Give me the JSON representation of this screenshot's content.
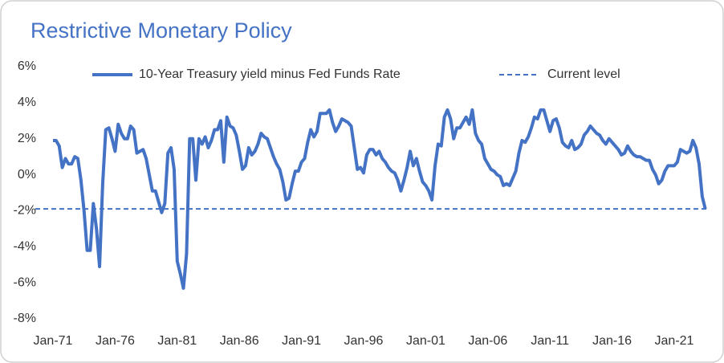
{
  "chart_data": {
    "type": "line",
    "title": "Restrictive Monetary Policy",
    "legend": "top",
    "categories": [
      "Jan-71",
      null,
      null,
      null,
      null,
      null,
      null,
      null,
      null,
      null,
      null,
      null,
      null,
      null,
      null,
      null,
      null,
      null,
      null,
      null,
      "Jan-76",
      null,
      null,
      null,
      null,
      null,
      null,
      null,
      null,
      null,
      null,
      null,
      null,
      null,
      null,
      null,
      null,
      null,
      null,
      null,
      "Jan-81",
      null,
      null,
      null,
      null,
      null,
      null,
      null,
      null,
      null,
      null,
      null,
      null,
      null,
      null,
      null,
      null,
      null,
      null,
      null,
      "Jan-86",
      null,
      null,
      null,
      null,
      null,
      null,
      null,
      null,
      null,
      null,
      null,
      null,
      null,
      null,
      null,
      null,
      null,
      null,
      null,
      "Jan-91",
      null,
      null,
      null,
      null,
      null,
      null,
      null,
      null,
      null,
      null,
      null,
      null,
      null,
      null,
      null,
      null,
      null,
      null,
      null,
      "Jan-96",
      null,
      null,
      null,
      null,
      null,
      null,
      null,
      null,
      null,
      null,
      null,
      null,
      null,
      null,
      null,
      null,
      null,
      null,
      null,
      "Jan-01",
      null,
      null,
      null,
      null,
      null,
      null,
      null,
      null,
      null,
      null,
      null,
      null,
      null,
      null,
      null,
      null,
      null,
      null,
      null,
      "Jan-06",
      null,
      null,
      null,
      null,
      null,
      null,
      null,
      null,
      null,
      null,
      null,
      null,
      null,
      null,
      null,
      null,
      null,
      null,
      null,
      "Jan-11",
      null,
      null,
      null,
      null,
      null,
      null,
      null,
      null,
      null,
      null,
      null,
      null,
      null,
      null,
      null,
      null,
      null,
      null,
      null,
      "Jan-16",
      null,
      null,
      null,
      null,
      null,
      null,
      null,
      null,
      null,
      null,
      null,
      null,
      null,
      null,
      null,
      null,
      null,
      null,
      null,
      "Jan-21",
      null,
      null,
      null,
      null,
      null,
      null,
      null,
      null,
      null,
      null
    ],
    "series": [
      {
        "name": "10-Year Treasury yield minus Fed Funds Rate",
        "color": "#4472c4",
        "values": [
          1.9,
          1.9,
          1.6,
          0.4,
          0.9,
          0.6,
          0.6,
          1.0,
          0.9,
          -0.3,
          -2.0,
          -4.2,
          -4.2,
          -1.6,
          -3.0,
          -5.1,
          -0.5,
          2.5,
          2.6,
          2.0,
          1.3,
          2.8,
          2.3,
          2.0,
          2.0,
          2.7,
          2.5,
          1.2,
          1.3,
          1.4,
          0.9,
          0.0,
          -0.9,
          -0.9,
          -1.5,
          -2.1,
          -1.6,
          1.2,
          1.5,
          0.3,
          -4.8,
          -5.5,
          -6.3,
          -4.4,
          2.0,
          2.0,
          -0.3,
          2.0,
          1.7,
          2.1,
          1.5,
          1.9,
          2.5,
          2.5,
          3.0,
          0.7,
          3.2,
          2.7,
          2.6,
          2.2,
          1.3,
          0.3,
          0.5,
          1.5,
          1.1,
          1.3,
          1.7,
          2.3,
          2.1,
          2.0,
          1.5,
          1.0,
          0.6,
          0.3,
          -0.4,
          -1.4,
          -1.3,
          -0.5,
          0.2,
          0.2,
          0.7,
          0.9,
          1.8,
          2.5,
          2.1,
          2.4,
          3.4,
          3.4,
          3.4,
          3.6,
          2.9,
          2.4,
          2.7,
          3.1,
          3.0,
          2.9,
          2.7,
          1.5,
          0.3,
          0.4,
          0.1,
          1.1,
          1.4,
          1.4,
          1.1,
          1.3,
          0.9,
          0.7,
          0.4,
          0.2,
          0.1,
          -0.3,
          -0.9,
          -0.3,
          0.4,
          1.3,
          0.5,
          0.9,
          0.2,
          -0.4,
          -0.6,
          -0.9,
          -1.4,
          0.5,
          1.7,
          1.6,
          3.2,
          3.6,
          3.1,
          2.0,
          2.6,
          2.6,
          2.9,
          3.2,
          2.8,
          3.6,
          2.3,
          1.9,
          1.7,
          0.9,
          0.6,
          0.3,
          0.2,
          0.0,
          -0.1,
          -0.6,
          -0.5,
          -0.6,
          -0.2,
          0.2,
          1.2,
          1.9,
          1.8,
          2.1,
          2.6,
          3.2,
          3.1,
          3.6,
          3.6,
          3.0,
          2.4,
          3.0,
          3.1,
          2.6,
          1.8,
          1.6,
          1.5,
          1.9,
          1.4,
          1.5,
          1.7,
          2.2,
          2.4,
          2.7,
          2.5,
          2.3,
          2.2,
          1.9,
          1.7,
          2.0,
          1.8,
          1.6,
          1.4,
          1.1,
          1.2,
          1.6,
          1.3,
          1.1,
          1.0,
          1.0,
          0.9,
          0.8,
          0.8,
          0.3,
          0.0,
          -0.5,
          -0.3,
          0.2,
          0.5,
          0.5,
          0.5,
          0.7,
          1.4,
          1.3,
          1.2,
          1.3,
          1.9,
          1.5,
          0.6,
          -1.2,
          -1.9
        ]
      }
    ],
    "reference_line": {
      "name": "Current level",
      "value": -1.9,
      "color": "#4472c4",
      "style": "dashed"
    },
    "ylim": [
      -8,
      6
    ],
    "yticks": [
      {
        "value": -8,
        "label": "-8%"
      },
      {
        "value": -6,
        "label": "-6%"
      },
      {
        "value": -4,
        "label": "-4%"
      },
      {
        "value": -2,
        "label": "-2%"
      },
      {
        "value": 0,
        "label": "0%"
      },
      {
        "value": 2,
        "label": "2%"
      },
      {
        "value": 4,
        "label": "4%"
      },
      {
        "value": 6,
        "label": "6%"
      }
    ],
    "grid": false
  }
}
